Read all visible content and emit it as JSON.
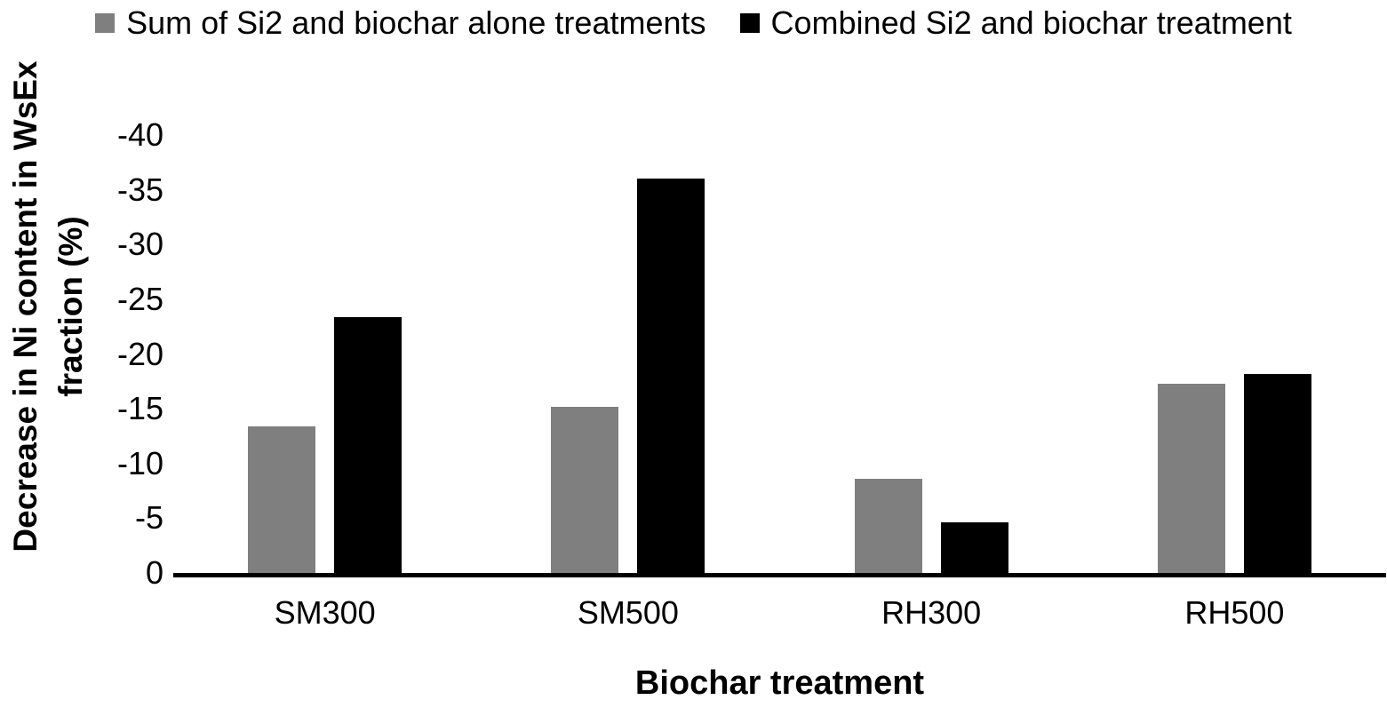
{
  "chart_data": {
    "type": "bar",
    "title": "",
    "categories": [
      "SM300",
      "SM500",
      "RH300",
      "RH500"
    ],
    "series": [
      {
        "name": "Sum of Si2 and biochar alone treatments",
        "color": "#7F7F7F",
        "values": [
          -13.4,
          -15.2,
          -8.6,
          -17.3
        ]
      },
      {
        "name": "Combined Si2 and biochar treatment",
        "color": "#000000",
        "values": [
          -23.4,
          -36.0,
          -4.6,
          -18.2
        ]
      }
    ],
    "xlabel": "Biochar treatment",
    "ylabel": "Decrease in Ni content in WsEx fraction (%)",
    "ylabel_lines": [
      "Decrease in Ni content in WsEx",
      "fraction (%)"
    ],
    "yticks": [
      0,
      -5,
      -10,
      -15,
      -20,
      -25,
      -30,
      -35,
      -40
    ],
    "ylim": [
      0,
      -40
    ],
    "y_direction": "bars grow upward toward -40 (negative values, magnitude up)",
    "grid": false,
    "legend_position": "top",
    "background": "#ffffff",
    "axis_line_color": "#000000"
  }
}
